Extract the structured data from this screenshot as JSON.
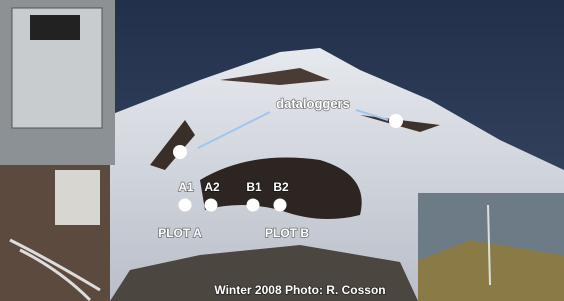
{
  "annotation": "dataloggers",
  "plots": [
    {
      "name": "PLOT A",
      "sensors": [
        "A1",
        "A2"
      ]
    },
    {
      "name": "PLOT B",
      "sensors": [
        "B1",
        "B2"
      ]
    }
  ],
  "caption": "Winter 2008 Photo: R. Cosson"
}
